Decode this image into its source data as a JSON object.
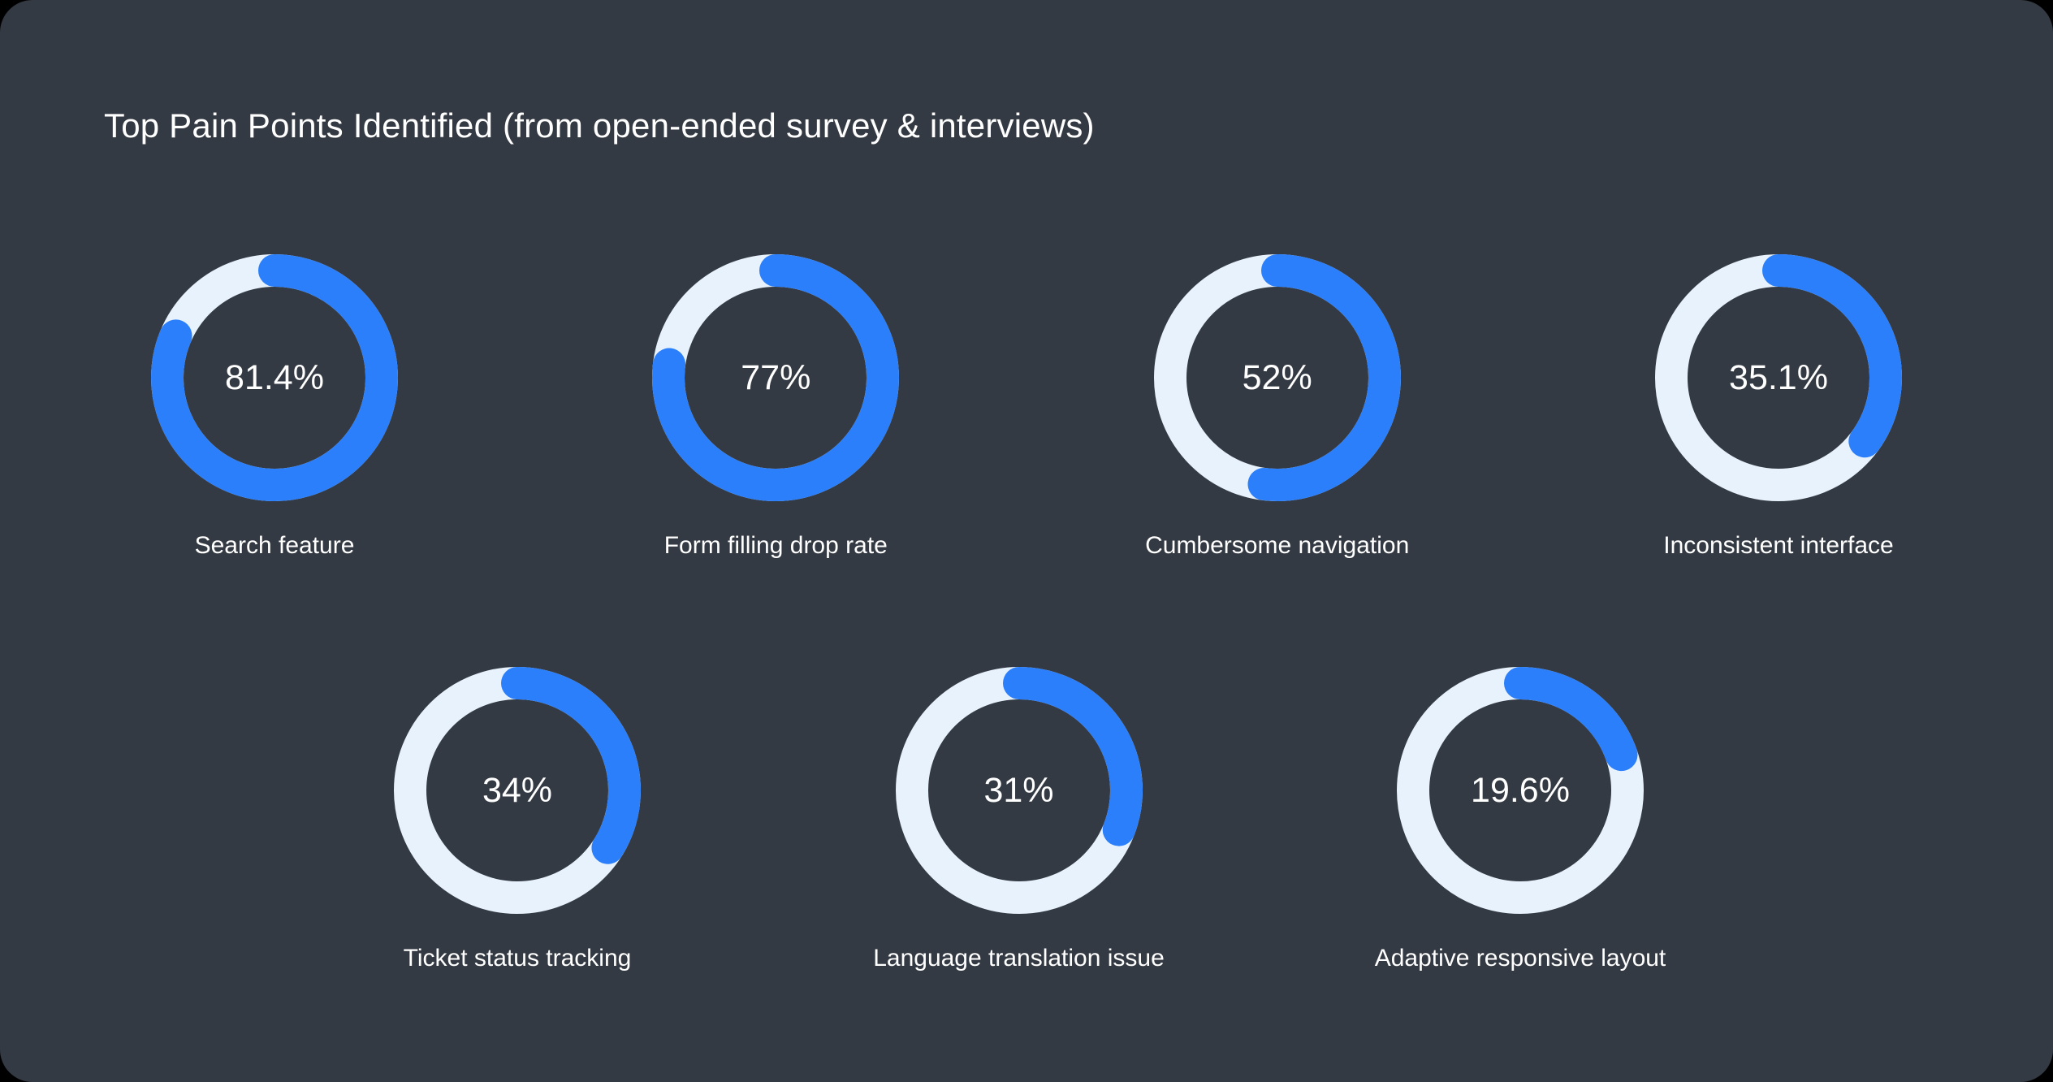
{
  "page": {
    "title": "Top Pain Points Identified (from open-ended survey & interviews)"
  },
  "colors": {
    "page_background": "#000000",
    "card_background": "#343A43",
    "progress": "#2B7FFA",
    "track": "#E7F2FC",
    "text": "#FFFFFF"
  },
  "chart_data": {
    "type": "pie",
    "variant": "donut-progress-rings",
    "title": "Top Pain Points Identified (from open-ended survey & interviews)",
    "unit": "%",
    "categories": [
      "Search feature",
      "Form filling drop rate",
      "Cumbersome navigation",
      "Inconsistent interface",
      "Ticket status tracking",
      "Language translation issue",
      "Adaptive responsive layout"
    ],
    "values": [
      81.4,
      77,
      52,
      35.1,
      34,
      31,
      19.6
    ],
    "value_labels": [
      "81.4%",
      "77%",
      "52%",
      "35.1%",
      "34%",
      "31%",
      "19.6%"
    ],
    "layout": {
      "rows": [
        4,
        3
      ],
      "start_angle_deg": 0,
      "direction": "clockwise",
      "legend": "none",
      "labels_position": "below-ring",
      "value_position": "center-of-ring"
    }
  }
}
